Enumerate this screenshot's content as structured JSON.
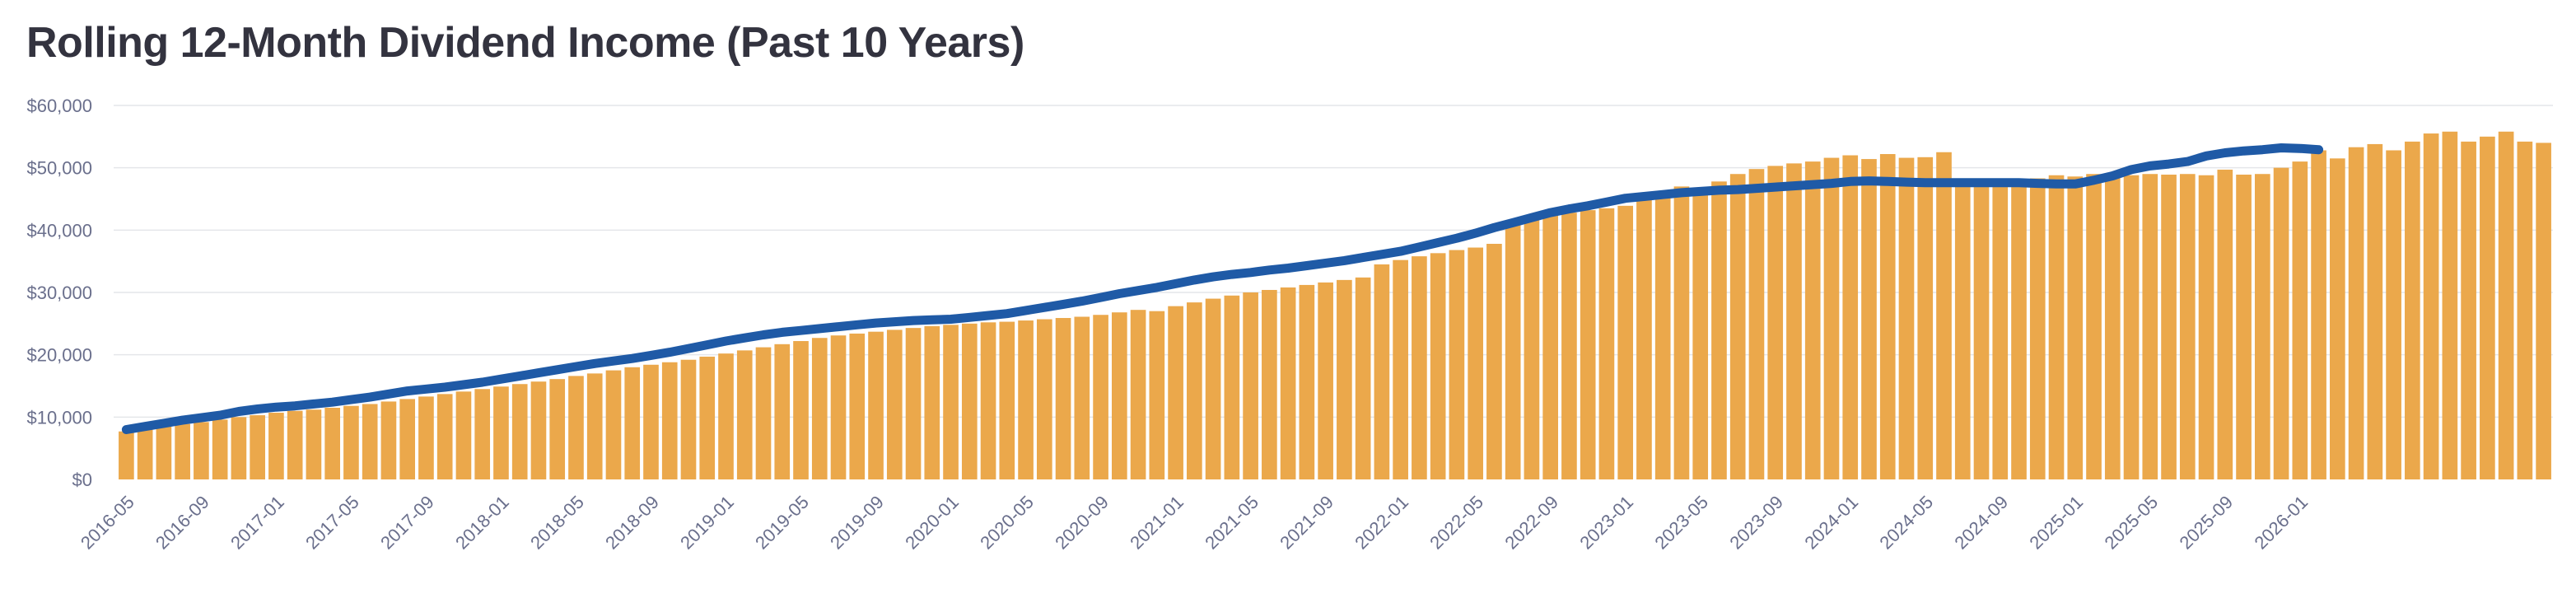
{
  "chart_data": {
    "type": "bar",
    "title": "Rolling 12-Month Dividend Income (Past 10 Years)",
    "xlabel": "",
    "ylabel": "",
    "ylim": [
      0,
      60000
    ],
    "yticks": [
      0,
      10000,
      20000,
      30000,
      40000,
      50000,
      60000
    ],
    "ytick_labels": [
      "$0",
      "$10,000",
      "$20,000",
      "$30,000",
      "$40,000",
      "$50,000",
      "$60,000"
    ],
    "xtick_labels": [
      "2016-05",
      "2016-09",
      "2017-01",
      "2017-05",
      "2017-09",
      "2018-01",
      "2018-05",
      "2018-09",
      "2019-01",
      "2019-05",
      "2019-09",
      "2020-01",
      "2020-05",
      "2020-09",
      "2021-01",
      "2021-05",
      "2021-09",
      "2022-01",
      "2022-05",
      "2022-09",
      "2023-01",
      "2023-05",
      "2023-09",
      "2024-01",
      "2024-05",
      "2024-09",
      "2025-01",
      "2025-05",
      "2025-09",
      "2026-01"
    ],
    "grid": true,
    "legend": "none",
    "start_month": "2016-05",
    "colors": {
      "bars": "#eba84b",
      "line": "#1f5aa6"
    },
    "series": [
      {
        "type": "bar",
        "values": [
          7700,
          8200,
          8500,
          8900,
          9200,
          9600,
          10000,
          10300,
          10700,
          11000,
          11200,
          11500,
          11800,
          12100,
          12500,
          12900,
          13300,
          13700,
          14100,
          14500,
          14900,
          15300,
          15700,
          16100,
          16600,
          17000,
          17500,
          18000,
          18400,
          18800,
          19200,
          19700,
          20200,
          20700,
          21200,
          21700,
          22200,
          22700,
          23100,
          23400,
          23700,
          24000,
          24300,
          24600,
          24800,
          25000,
          25200,
          25300,
          25500,
          25700,
          25900,
          26100,
          26400,
          26800,
          27200,
          27000,
          27800,
          28400,
          29000,
          29500,
          30000,
          30400,
          30800,
          31200,
          31600,
          32000,
          32400,
          34500,
          35200,
          35800,
          36300,
          36800,
          37200,
          37800,
          41500,
          41800,
          42500,
          42800,
          43200,
          43500,
          43900,
          45000,
          46000,
          47000,
          46700,
          47800,
          49000,
          49800,
          50300,
          50700,
          51000,
          51600,
          52000,
          51400,
          52200,
          51600,
          51700,
          52500,
          48000,
          47800,
          48000,
          48200,
          48300,
          48800,
          48600,
          49000,
          48700,
          48800,
          49000,
          48900,
          49000,
          48800,
          49700,
          48900,
          49000,
          50000,
          51000,
          52800,
          51500,
          53300,
          53800,
          52800,
          54200,
          55500,
          55800,
          54200,
          55000,
          55800,
          54200,
          54000
        ]
      },
      {
        "type": "line",
        "values": [
          8000,
          8500,
          9000,
          9500,
          9900,
          10300,
          10900,
          11300,
          11600,
          11800,
          12100,
          12400,
          12800,
          13200,
          13700,
          14200,
          14500,
          14800,
          15200,
          15600,
          16100,
          16600,
          17100,
          17600,
          18100,
          18600,
          19000,
          19400,
          19900,
          20400,
          21000,
          21600,
          22200,
          22700,
          23200,
          23600,
          23900,
          24200,
          24500,
          24800,
          25100,
          25300,
          25500,
          25600,
          25700,
          26000,
          26300,
          26600,
          27100,
          27600,
          28100,
          28600,
          29200,
          29800,
          30300,
          30800,
          31400,
          32000,
          32500,
          32900,
          33200,
          33600,
          33900,
          34300,
          34700,
          35100,
          35600,
          36100,
          36600,
          37300,
          38000,
          38700,
          39500,
          40400,
          41200,
          42000,
          42800,
          43400,
          43900,
          44500,
          45100,
          45400,
          45700,
          46000,
          46200,
          46400,
          46500,
          46700,
          46900,
          47100,
          47300,
          47500,
          47800,
          47900,
          47800,
          47700,
          47600,
          47600,
          47600,
          47600,
          47600,
          47600,
          47500,
          47400,
          47400,
          48000,
          48700,
          49700,
          50300,
          50600,
          51000,
          51900,
          52400,
          52700,
          52900,
          53200,
          53100,
          52900
        ]
      }
    ]
  }
}
